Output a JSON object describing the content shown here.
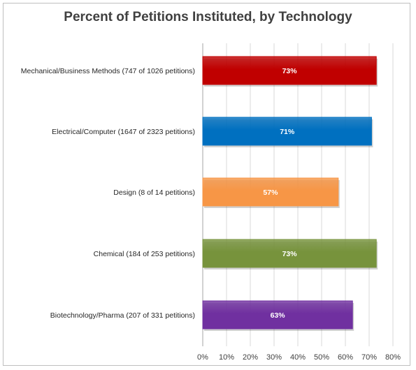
{
  "chart_data": {
    "type": "bar",
    "orientation": "horizontal",
    "title": "Percent of Petitions Instituted, by Technology",
    "categories": [
      "Mechanical/Business Methods (747 of 1026 petitions)",
      "Electrical/Computer (1647 of 2323 petitions)",
      "Design (8 of 14 petitions)",
      "Chemical (184 of 253 petitions)",
      "Biotechnology/Pharma (207 of 331 petitions)"
    ],
    "values": [
      73,
      71,
      57,
      73,
      63
    ],
    "value_labels": [
      "73%",
      "71%",
      "57%",
      "73%",
      "63%"
    ],
    "colors": [
      "#c00000",
      "#0070c0",
      "#f79646",
      "#77933c",
      "#7030a0"
    ],
    "xlim": [
      0,
      80
    ],
    "xticks": [
      "0%",
      "10%",
      "20%",
      "30%",
      "40%",
      "50%",
      "60%",
      "70%",
      "80%"
    ],
    "grid": true
  }
}
